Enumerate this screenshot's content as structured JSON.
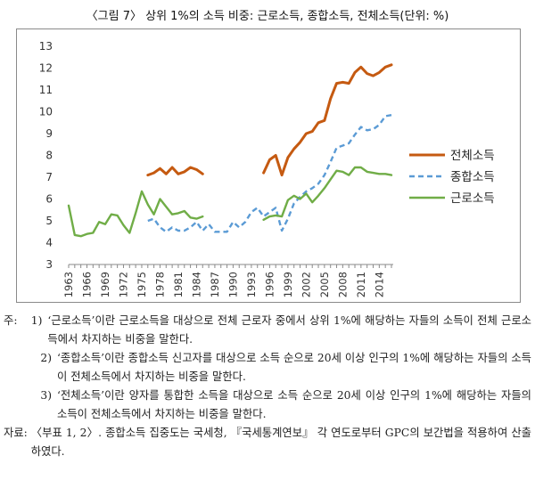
{
  "figure": {
    "title": "〈그림 7〉 상위 1%의 소득 비중: 근로소득, 종합소득, 전체소득(단위: %)"
  },
  "chart_data": {
    "type": "line",
    "x_tick_labels": [
      "1963",
      "1966",
      "1969",
      "1972",
      "1975",
      "1978",
      "1981",
      "1984",
      "1987",
      "1990",
      "1993",
      "1996",
      "1999",
      "2002",
      "2005",
      "2008",
      "2011",
      "2014"
    ],
    "y_tick_labels": [
      "3",
      "4",
      "5",
      "6",
      "7",
      "8",
      "9",
      "10",
      "11",
      "12",
      "13"
    ],
    "ylim": [
      3,
      13
    ],
    "xlim": [
      1963,
      2016
    ],
    "grid": false,
    "legend_position": "right",
    "series": [
      {
        "name": "전체소득",
        "color": "#c55a11",
        "style": "solid",
        "segments": [
          [
            [
              1976,
              7.1
            ],
            [
              1977,
              7.2
            ],
            [
              1978,
              7.4
            ],
            [
              1979,
              7.15
            ],
            [
              1980,
              7.45
            ],
            [
              1981,
              7.15
            ],
            [
              1982,
              7.25
            ],
            [
              1983,
              7.45
            ],
            [
              1984,
              7.35
            ],
            [
              1985,
              7.15
            ]
          ],
          [
            [
              1995,
              7.2
            ],
            [
              1996,
              7.8
            ],
            [
              1997,
              8.0
            ],
            [
              1998,
              7.1
            ],
            [
              1999,
              7.9
            ],
            [
              2000,
              8.3
            ],
            [
              2001,
              8.6
            ],
            [
              2002,
              9.0
            ],
            [
              2003,
              9.1
            ],
            [
              2004,
              9.5
            ],
            [
              2005,
              9.6
            ],
            [
              2006,
              10.6
            ],
            [
              2007,
              11.3
            ],
            [
              2008,
              11.35
            ],
            [
              2009,
              11.3
            ],
            [
              2010,
              11.8
            ],
            [
              2011,
              12.05
            ],
            [
              2012,
              11.75
            ],
            [
              2013,
              11.65
            ],
            [
              2014,
              11.8
            ],
            [
              2015,
              12.05
            ],
            [
              2016,
              12.15
            ]
          ]
        ]
      },
      {
        "name": "종합소득",
        "color": "#5b9bd5",
        "style": "dashed",
        "segments": [
          [
            [
              1976,
              5.0
            ],
            [
              1977,
              5.1
            ],
            [
              1978,
              4.7
            ],
            [
              1979,
              4.5
            ],
            [
              1980,
              4.7
            ],
            [
              1981,
              4.55
            ],
            [
              1982,
              4.55
            ],
            [
              1983,
              4.7
            ],
            [
              1984,
              4.95
            ],
            [
              1985,
              4.55
            ],
            [
              1986,
              4.85
            ],
            [
              1987,
              4.5
            ],
            [
              1988,
              4.5
            ],
            [
              1989,
              4.5
            ],
            [
              1990,
              4.95
            ],
            [
              1991,
              4.7
            ],
            [
              1992,
              4.95
            ],
            [
              1993,
              5.4
            ],
            [
              1994,
              5.6
            ],
            [
              1995,
              5.2
            ],
            [
              1996,
              5.4
            ],
            [
              1997,
              5.6
            ],
            [
              1998,
              4.55
            ],
            [
              1999,
              5.1
            ],
            [
              2000,
              5.8
            ],
            [
              2001,
              6.1
            ],
            [
              2002,
              6.35
            ],
            [
              2003,
              6.5
            ],
            [
              2004,
              6.7
            ],
            [
              2005,
              7.1
            ],
            [
              2006,
              7.7
            ],
            [
              2007,
              8.35
            ],
            [
              2008,
              8.45
            ],
            [
              2009,
              8.55
            ],
            [
              2010,
              8.95
            ],
            [
              2011,
              9.3
            ],
            [
              2012,
              9.15
            ],
            [
              2013,
              9.2
            ],
            [
              2014,
              9.4
            ],
            [
              2015,
              9.8
            ],
            [
              2016,
              9.85
            ]
          ]
        ]
      },
      {
        "name": "근로소득",
        "color": "#70ad47",
        "style": "solid",
        "segments": [
          [
            [
              1963,
              5.7
            ],
            [
              1964,
              4.35
            ],
            [
              1965,
              4.3
            ],
            [
              1966,
              4.4
            ],
            [
              1967,
              4.45
            ],
            [
              1968,
              4.95
            ],
            [
              1969,
              4.85
            ],
            [
              1970,
              5.3
            ],
            [
              1971,
              5.25
            ],
            [
              1972,
              4.8
            ],
            [
              1973,
              4.45
            ],
            [
              1974,
              5.35
            ],
            [
              1975,
              6.35
            ],
            [
              1976,
              5.75
            ],
            [
              1977,
              5.3
            ],
            [
              1978,
              6.0
            ],
            [
              1979,
              5.65
            ],
            [
              1980,
              5.3
            ],
            [
              1981,
              5.35
            ],
            [
              1982,
              5.45
            ],
            [
              1983,
              5.15
            ],
            [
              1984,
              5.1
            ],
            [
              1985,
              5.2
            ]
          ],
          [
            [
              1995,
              5.05
            ],
            [
              1996,
              5.2
            ],
            [
              1997,
              5.25
            ],
            [
              1998,
              5.2
            ],
            [
              1999,
              5.95
            ],
            [
              2000,
              6.15
            ],
            [
              2001,
              6.0
            ],
            [
              2002,
              6.25
            ],
            [
              2003,
              5.85
            ],
            [
              2004,
              6.15
            ],
            [
              2005,
              6.5
            ],
            [
              2006,
              6.9
            ],
            [
              2007,
              7.3
            ],
            [
              2008,
              7.25
            ],
            [
              2009,
              7.1
            ],
            [
              2010,
              7.45
            ],
            [
              2011,
              7.45
            ],
            [
              2012,
              7.25
            ],
            [
              2013,
              7.2
            ],
            [
              2014,
              7.15
            ],
            [
              2015,
              7.15
            ],
            [
              2016,
              7.1
            ]
          ]
        ]
      }
    ]
  },
  "notes": [
    {
      "head": "주: ",
      "num": "1)",
      "text": "‘근로소득’이란 근로소득을 대상으로 전체 근로자 중에서 상위 1%에 해당하는 자들의 소득이 전체 근로소득에서 차지하는 비중을 말한다."
    },
    {
      "head": "",
      "num": "2)",
      "text": "‘종합소득’이란 종합소득 신고자를 대상으로 소득 순으로 20세 이상 인구의 1%에 해당하는 자들의 소득이 전체소득에서 차지하는 비중을 말한다."
    },
    {
      "head": "",
      "num": "3)",
      "text": "‘전체소득’이란 양자를 통합한 소득을 대상으로 소득 순으로 20세 이상 인구의 1%에 해당하는 자들의 소득이 전체소득에서 차지하는 비중을 말한다."
    }
  ],
  "source": {
    "head": "자료: ",
    "text": "〈부표 1, 2〉. 종합소득 집중도는 국세청, 『국세통계연보』 각 연도로부터 GPC의 보간법을 적용하여 산출하였다."
  }
}
